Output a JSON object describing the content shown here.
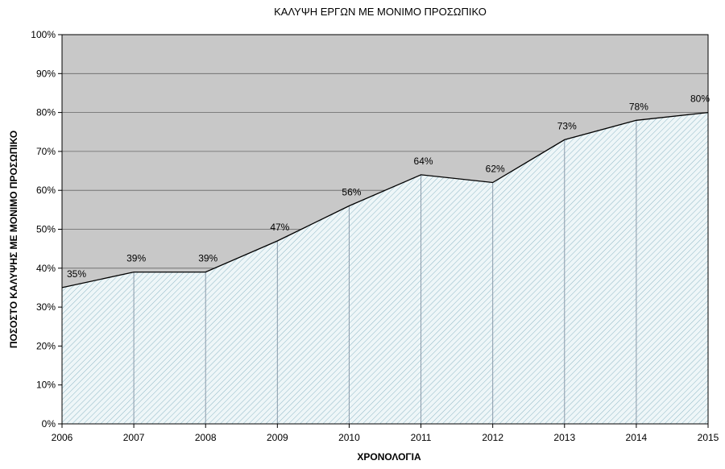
{
  "chart_data": {
    "type": "area",
    "title": "ΚΑΛΥΨΗ ΕΡΓΩΝ ΜΕ ΜΟΝΙΜΟ ΠΡΟΣΩΠΙΚΟ",
    "xlabel": "ΧΡΟΝΟΛΟΓΙΑ",
    "ylabel": "ΠΟΣΟΣΤΟ ΚΑΛΥΨΗΣ ΜΕ ΜΟΝΙΜΟ ΠΡΟΣΩΠΙΚΟ",
    "categories": [
      "2006",
      "2007",
      "2008",
      "2009",
      "2010",
      "2011",
      "2012",
      "2013",
      "2014",
      "2015"
    ],
    "values": [
      35,
      39,
      39,
      47,
      56,
      64,
      62,
      73,
      78,
      80
    ],
    "data_labels": [
      "35%",
      "39%",
      "39%",
      "47%",
      "56%",
      "64%",
      "62%",
      "73%",
      "78%",
      "80%"
    ],
    "y_ticks": [
      "0%",
      "10%",
      "20%",
      "30%",
      "40%",
      "50%",
      "60%",
      "70%",
      "80%",
      "90%",
      "100%"
    ],
    "ylim": [
      0,
      100
    ],
    "grid": true,
    "legend": "none",
    "colors": {
      "plot_background": "#c8c8c8",
      "area_fill": "#eef6f8",
      "hatch": "#8fb8c6",
      "line": "#000000",
      "gridline": "#666666",
      "vertical_dropline": "#8a9aaa"
    }
  }
}
